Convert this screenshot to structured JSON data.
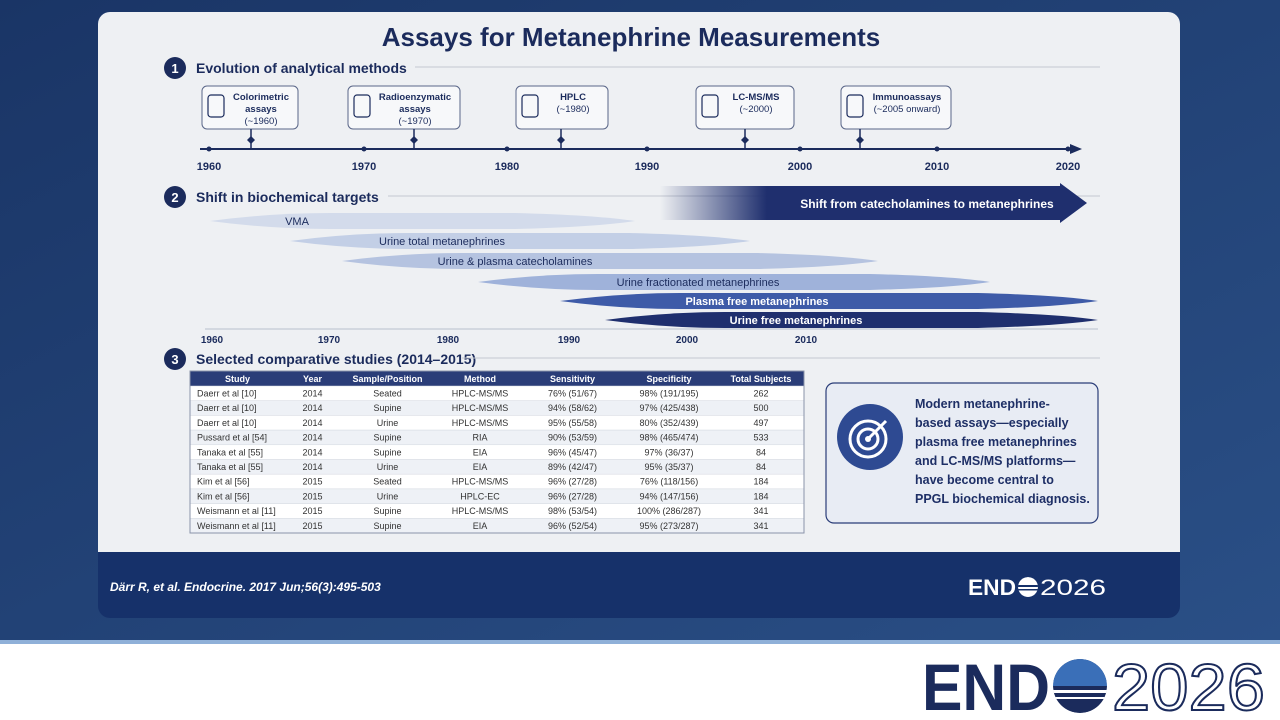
{
  "title": "Assays for Metanephrine Measurements",
  "sections": [
    {
      "number": "1",
      "title": "Evolution of analytical methods"
    },
    {
      "number": "2",
      "title": "Shift in biochemical targets"
    },
    {
      "number": "3",
      "title": "Selected comparative studies (2014–2015)"
    }
  ],
  "timeline": {
    "years": [
      "1960",
      "1970",
      "1980",
      "1990",
      "2000",
      "2010",
      "2020"
    ],
    "assays": [
      {
        "label": "Colorimetric assays",
        "date": "(~1960)"
      },
      {
        "label": "Radioenzymatic assays",
        "date": "(~1970)"
      },
      {
        "label": "HPLC",
        "date": "(~1980)"
      },
      {
        "label": "LC-MS/MS",
        "date": "(~2000)"
      },
      {
        "label": "Immunoassays",
        "date": "(~2005 onward)"
      }
    ]
  },
  "shift": {
    "arrow": "Shift from catecholamines to metanephrines",
    "bands": [
      "VMA",
      "Urine total metanephrines",
      "Urine & plasma catecholamines",
      "Urine fractionated metanephrines",
      "Plasma free metanephrines",
      "Urine free metanephrines"
    ],
    "years": [
      "1960",
      "1970",
      "1980",
      "1990",
      "2000",
      "2010"
    ]
  },
  "table": {
    "header": [
      "Study",
      "Year",
      "Sample/Position",
      "Method",
      "Sensitivity",
      "Specificity",
      "Total Subjects"
    ],
    "rows": [
      [
        "Daerr et al [10]",
        "2014",
        "Seated",
        "HPLC-MS/MS",
        "76% (51/67)",
        "98% (191/195)",
        "262"
      ],
      [
        "Daerr et al [10]",
        "2014",
        "Supine",
        "HPLC-MS/MS",
        "94% (58/62)",
        "97% (425/438)",
        "500"
      ],
      [
        "Daerr et al [10]",
        "2014",
        "Urine",
        "HPLC-MS/MS",
        "95% (55/58)",
        "80% (352/439)",
        "497"
      ],
      [
        "Pussard et al [54]",
        "2014",
        "Supine",
        "RIA",
        "90% (53/59)",
        "98% (465/474)",
        "533"
      ],
      [
        "Tanaka et al [55]",
        "2014",
        "Supine",
        "EIA",
        "96% (45/47)",
        "97% (36/37)",
        "84"
      ],
      [
        "Tanaka et al [55]",
        "2014",
        "Urine",
        "EIA",
        "89% (42/47)",
        "95% (35/37)",
        "84"
      ],
      [
        "Kim et al [56]",
        "2015",
        "Seated",
        "HPLC-MS/MS",
        "96% (27/28)",
        "76% (118/156)",
        "184"
      ],
      [
        "Kim et al [56]",
        "2015",
        "Urine",
        "HPLC-EC",
        "96% (27/28)",
        "94% (147/156)",
        "184"
      ],
      [
        "Weismann et al [11]",
        "2015",
        "Supine",
        "HPLC-MS/MS",
        "98% (53/54)",
        "100% (286/287)",
        "341"
      ],
      [
        "Weismann et al [11]",
        "2015",
        "Supine",
        "EIA",
        "96% (52/54)",
        "95% (273/287)",
        "341"
      ]
    ]
  },
  "callout": [
    "Modern metanephrine-",
    "based assays—especially",
    "plasma free metanephrines",
    "and LC-MS/MS platforms—",
    "have become central to",
    "PPGL biochemical diagnosis."
  ],
  "citation": "Därr R, et al. Endocrine. 2017 Jun;56(3):495-503",
  "brand": {
    "prefix": "END",
    "year": "2026"
  }
}
